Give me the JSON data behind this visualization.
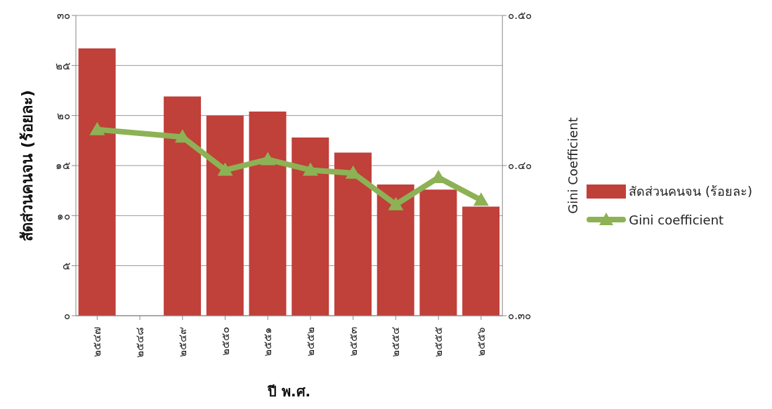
{
  "chart_data": {
    "type": "bar",
    "xlabel": "ปี พ.ศ.",
    "ylabel": "สัดส่วนคนจน (ร้อยละ)",
    "y2label": "Gini Coefficient",
    "categories": [
      "๒๕๔๗",
      "๒๕๔๘",
      "๒๕๔๙",
      "๒๕๕๐",
      "๒๕๕๑",
      "๒๕๕๒",
      "๒๕๕๓",
      "๒๕๕๔",
      "๒๕๕๕",
      "๒๕๕๖"
    ],
    "series": [
      {
        "name": "สัดส่วนคนจน (ร้อยละ)",
        "color": "#c0403a",
        "values": [
          26.7,
          null,
          21.9,
          20.0,
          20.4,
          17.8,
          16.3,
          13.1,
          12.6,
          10.9
        ]
      },
      {
        "name": "Gini coefficient",
        "type": "line",
        "axis": "y2",
        "color": "#8db255",
        "marker": "triangle",
        "values": [
          0.424,
          null,
          0.419,
          0.397,
          0.404,
          0.397,
          0.395,
          0.374,
          0.392,
          0.377
        ]
      }
    ],
    "ylim": [
      0,
      30
    ],
    "yticks": [
      {
        "value": 0,
        "label": "๐"
      },
      {
        "value": 5,
        "label": "๕"
      },
      {
        "value": 10,
        "label": "๑๐"
      },
      {
        "value": 15,
        "label": "๑๕"
      },
      {
        "value": 20,
        "label": "๒๐"
      },
      {
        "value": 25,
        "label": "๒๕"
      },
      {
        "value": 30,
        "label": "๓๐"
      }
    ],
    "y2lim": [
      0.3,
      0.5
    ],
    "y2ticks": [
      {
        "value": 0.3,
        "label": "๐.๓๐"
      },
      {
        "value": 0.4,
        "label": "๐.๔๐"
      },
      {
        "value": 0.5,
        "label": "๐.๕๐"
      }
    ],
    "grid": "y",
    "legend": "right"
  }
}
